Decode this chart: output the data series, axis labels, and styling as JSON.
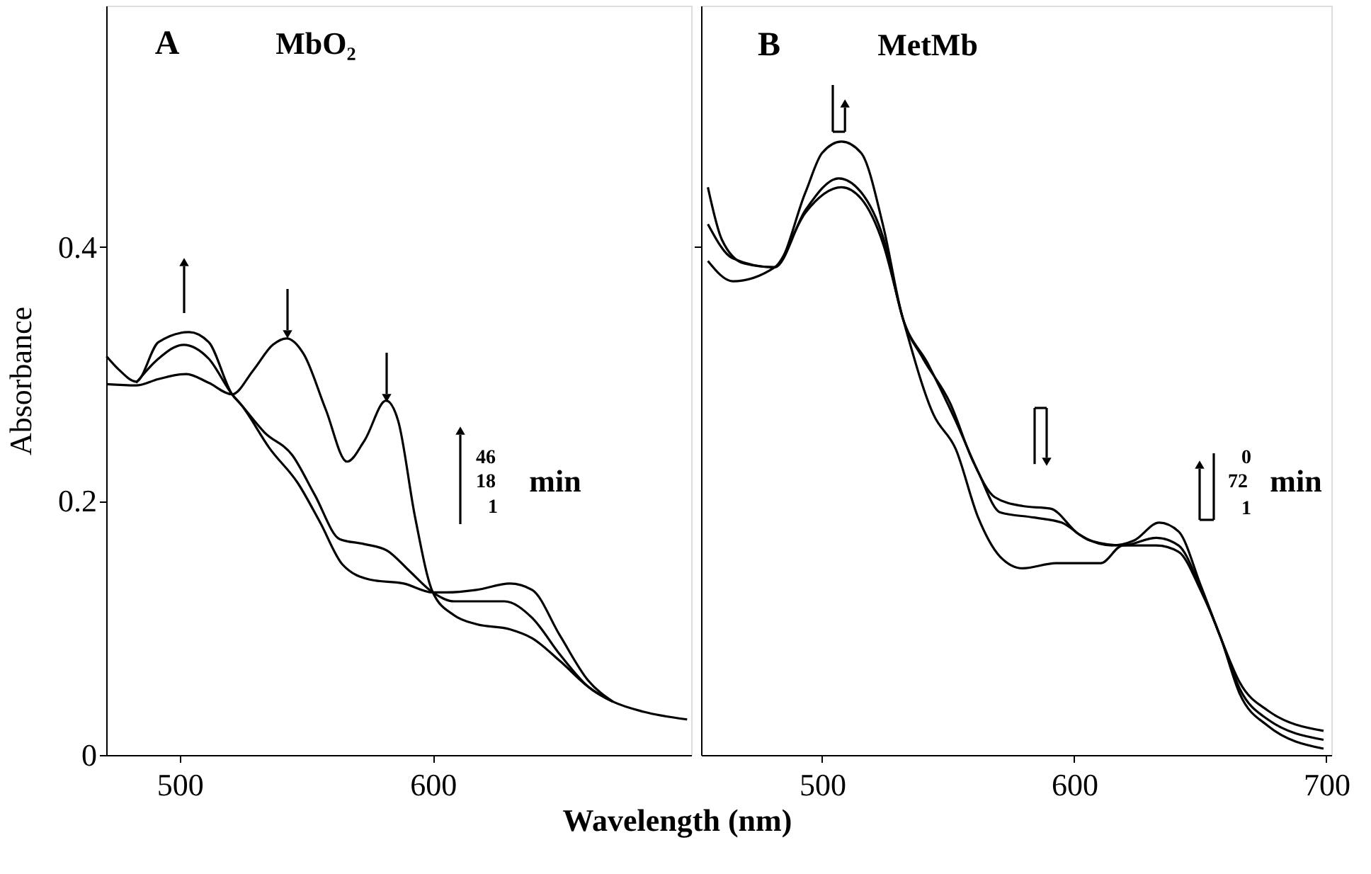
{
  "chart_data": [
    {
      "type": "line",
      "ylabel": "Absorbance",
      "xlabel": "Wavelength (nm)",
      "xlim": [
        471,
        702
      ],
      "xticks": [
        500,
        600
      ],
      "ylim": [
        0,
        0.59
      ],
      "yticks": [
        0,
        0.2,
        0.4
      ],
      "tick_labels": "xy",
      "line_style": "solid",
      "marker": "none",
      "annotations": [
        "A",
        "MbO₂",
        "46",
        "18",
        "1",
        "min"
      ],
      "series": [
        {
          "color": "#000000",
          "x": [
            471.1,
            482.8,
            491.6,
            502.6,
            511.5,
            520.7,
            529.1,
            536.8,
            542.3,
            548.9,
            557.7,
            566.1,
            573.1,
            581.5,
            586.3,
            592.9,
            600,
            608.4,
            617.2,
            630.4,
            639.2,
            650.2,
            661.2,
            671.1,
            683.3,
            700.4
          ],
          "values": [
            0.292,
            0.291,
            0.296,
            0.3,
            0.293,
            0.284,
            0.303,
            0.323,
            0.328,
            0.316,
            0.272,
            0.231,
            0.248,
            0.279,
            0.263,
            0.188,
            0.128,
            0.11,
            0.103,
            0.099,
            0.092,
            0.074,
            0.054,
            0.042,
            0.034,
            0.028
          ]
        },
        {
          "color": "#000000",
          "x": [
            482.8,
            491.6,
            501.5,
            511.5,
            520.7,
            524.2,
            533.5,
            544.5,
            553.3,
            563.2,
            573.1,
            581.9,
            590.7,
            600,
            608.4,
            628.2,
            639.2,
            650.2,
            661.2,
            671.1
          ],
          "values": [
            0.293,
            0.312,
            0.323,
            0.312,
            0.284,
            0.276,
            0.254,
            0.236,
            0.205,
            0.17,
            0.166,
            0.161,
            0.145,
            0.128,
            0.121,
            0.121,
            0.108,
            0.079,
            0.054,
            0.042
          ]
        },
        {
          "color": "#000000",
          "x": [
            471.1,
            476.2,
            482.8,
            491.6,
            503.7,
            511.5,
            520.7,
            524.2,
            535.7,
            546.7,
            555.5,
            564.3,
            575.3,
            588.5,
            600,
            605.1,
            617.2,
            630.4,
            639.2,
            650.2,
            661.2,
            671.1
          ],
          "values": [
            0.314,
            0.303,
            0.294,
            0.325,
            0.333,
            0.325,
            0.284,
            0.276,
            0.241,
            0.214,
            0.183,
            0.15,
            0.138,
            0.135,
            0.128,
            0.128,
            0.13,
            0.135,
            0.13,
            0.094,
            0.059,
            0.042
          ]
        }
      ]
    },
    {
      "type": "line",
      "xlim": [
        452,
        702
      ],
      "xticks": [
        500,
        600,
        700
      ],
      "ylim": [
        0,
        0.59
      ],
      "yticks": [
        {
          "value": 0.4,
          "label": null
        }
      ],
      "tick_labels": "x",
      "line_style": "solid",
      "marker": "none",
      "annotations": [
        "B",
        "MetMb",
        "0",
        "72",
        "1",
        "min"
      ],
      "series": [
        {
          "color": "#000000",
          "x": [
            454.7,
            460.2,
            469.1,
            481.2,
            493.4,
            500,
            507.7,
            515.5,
            524.3,
            532.0,
            539.8,
            550.8,
            559.7,
            568.5,
            579.6,
            590.6,
            601.7,
            614.9,
            623.8,
            633.7,
            641.4,
            650.3,
            658.0,
            665.7,
            676.8,
            698.9
          ],
          "values": [
            0.447,
            0.406,
            0.387,
            0.384,
            0.443,
            0.474,
            0.483,
            0.474,
            0.416,
            0.344,
            0.313,
            0.277,
            0.232,
            0.203,
            0.196,
            0.194,
            0.174,
            0.165,
            0.169,
            0.183,
            0.176,
            0.133,
            0.093,
            0.057,
            0.035,
            0.019
          ]
        },
        {
          "color": "#000000",
          "x": [
            454.7,
            464.6,
            481.2,
            493.4,
            506.6,
            515.5,
            524.3,
            532.0,
            542.0,
            553.0,
            561.9,
            570.7,
            584.0,
            595.0,
            606.1,
            619.3,
            632.6,
            641.4,
            650.3,
            658.0,
            665.7,
            676.8,
            698.9
          ],
          "values": [
            0.418,
            0.391,
            0.384,
            0.429,
            0.454,
            0.443,
            0.407,
            0.344,
            0.308,
            0.263,
            0.223,
            0.191,
            0.187,
            0.183,
            0.169,
            0.165,
            0.171,
            0.165,
            0.131,
            0.093,
            0.052,
            0.028,
            0.012
          ]
        },
        {
          "color": "#000000",
          "x": [
            454.7,
            464.6,
            481.2,
            493.4,
            507.7,
            515.5,
            524.3,
            532.0,
            544.2,
            553.0,
            561.9,
            570.7,
            579.6,
            592.8,
            610.5,
            619.3,
            632.6,
            641.4,
            650.3,
            658.0,
            665.7,
            676.8,
            698.9
          ],
          "values": [
            0.389,
            0.373,
            0.384,
            0.427,
            0.447,
            0.438,
            0.402,
            0.344,
            0.268,
            0.241,
            0.187,
            0.156,
            0.147,
            0.151,
            0.151,
            0.165,
            0.165,
            0.16,
            0.129,
            0.093,
            0.048,
            0.023,
            0.005
          ]
        }
      ]
    }
  ]
}
